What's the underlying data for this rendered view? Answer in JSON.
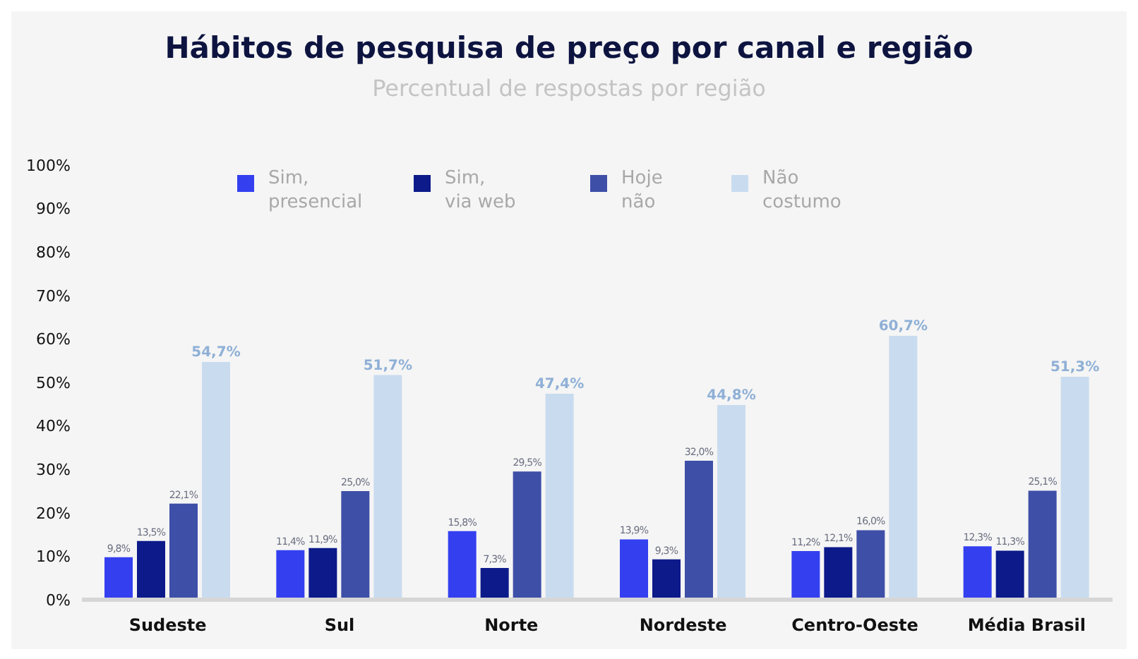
{
  "chart_data": {
    "type": "bar",
    "title": "Hábitos de pesquisa de preço por canal e região",
    "subtitle": "Percentual de respostas por região",
    "categories": [
      "Sudeste",
      "Sul",
      "Norte",
      "Nordeste",
      "Centro-Oeste",
      "Média Brasil"
    ],
    "series": [
      {
        "name": "Sim, presencial",
        "color": "#3440f0",
        "values": [
          9.8,
          11.4,
          15.8,
          13.9,
          11.2,
          12.3
        ],
        "value_labels": [
          "9,8%",
          "11,4%",
          "15,8%",
          "13,9%",
          "11,2%",
          "12,3%"
        ]
      },
      {
        "name": "Sim, via web",
        "color": "#0c1a8a",
        "values": [
          13.5,
          11.9,
          7.3,
          9.3,
          12.1,
          11.3
        ],
        "value_labels": [
          "13,5%",
          "11,9%",
          "7,3%",
          "9,3%",
          "12,1%",
          "11,3%"
        ]
      },
      {
        "name": "Hoje não",
        "color": "#3e4fa8",
        "values": [
          22.1,
          25.0,
          29.5,
          32.0,
          16.0,
          25.1
        ],
        "value_labels": [
          "22,1%",
          "25,0%",
          "29,5%",
          "32,0%",
          "16,0%",
          "25,1%"
        ]
      },
      {
        "name": "Não costumo",
        "color": "#c9dcef",
        "values": [
          54.7,
          51.7,
          47.4,
          44.8,
          60.7,
          51.3
        ],
        "value_labels": [
          "54,7%",
          "51,7%",
          "47,4%",
          "44,8%",
          "60,7%",
          "51,3%"
        ]
      }
    ],
    "ylim": [
      0,
      100
    ],
    "yticks": [
      {
        "value": 0,
        "label": "0%"
      },
      {
        "value": 10,
        "label": "10%"
      },
      {
        "value": 20,
        "label": "20%"
      },
      {
        "value": 30,
        "label": "30%"
      },
      {
        "value": 40,
        "label": "40%"
      },
      {
        "value": 50,
        "label": "50%"
      },
      {
        "value": 60,
        "label": "60%"
      },
      {
        "value": 70,
        "label": "70%"
      },
      {
        "value": 80,
        "label": "80%"
      },
      {
        "value": 90,
        "label": "90%"
      },
      {
        "value": 100,
        "label": "100%"
      }
    ],
    "grid": false,
    "legend": "top"
  }
}
